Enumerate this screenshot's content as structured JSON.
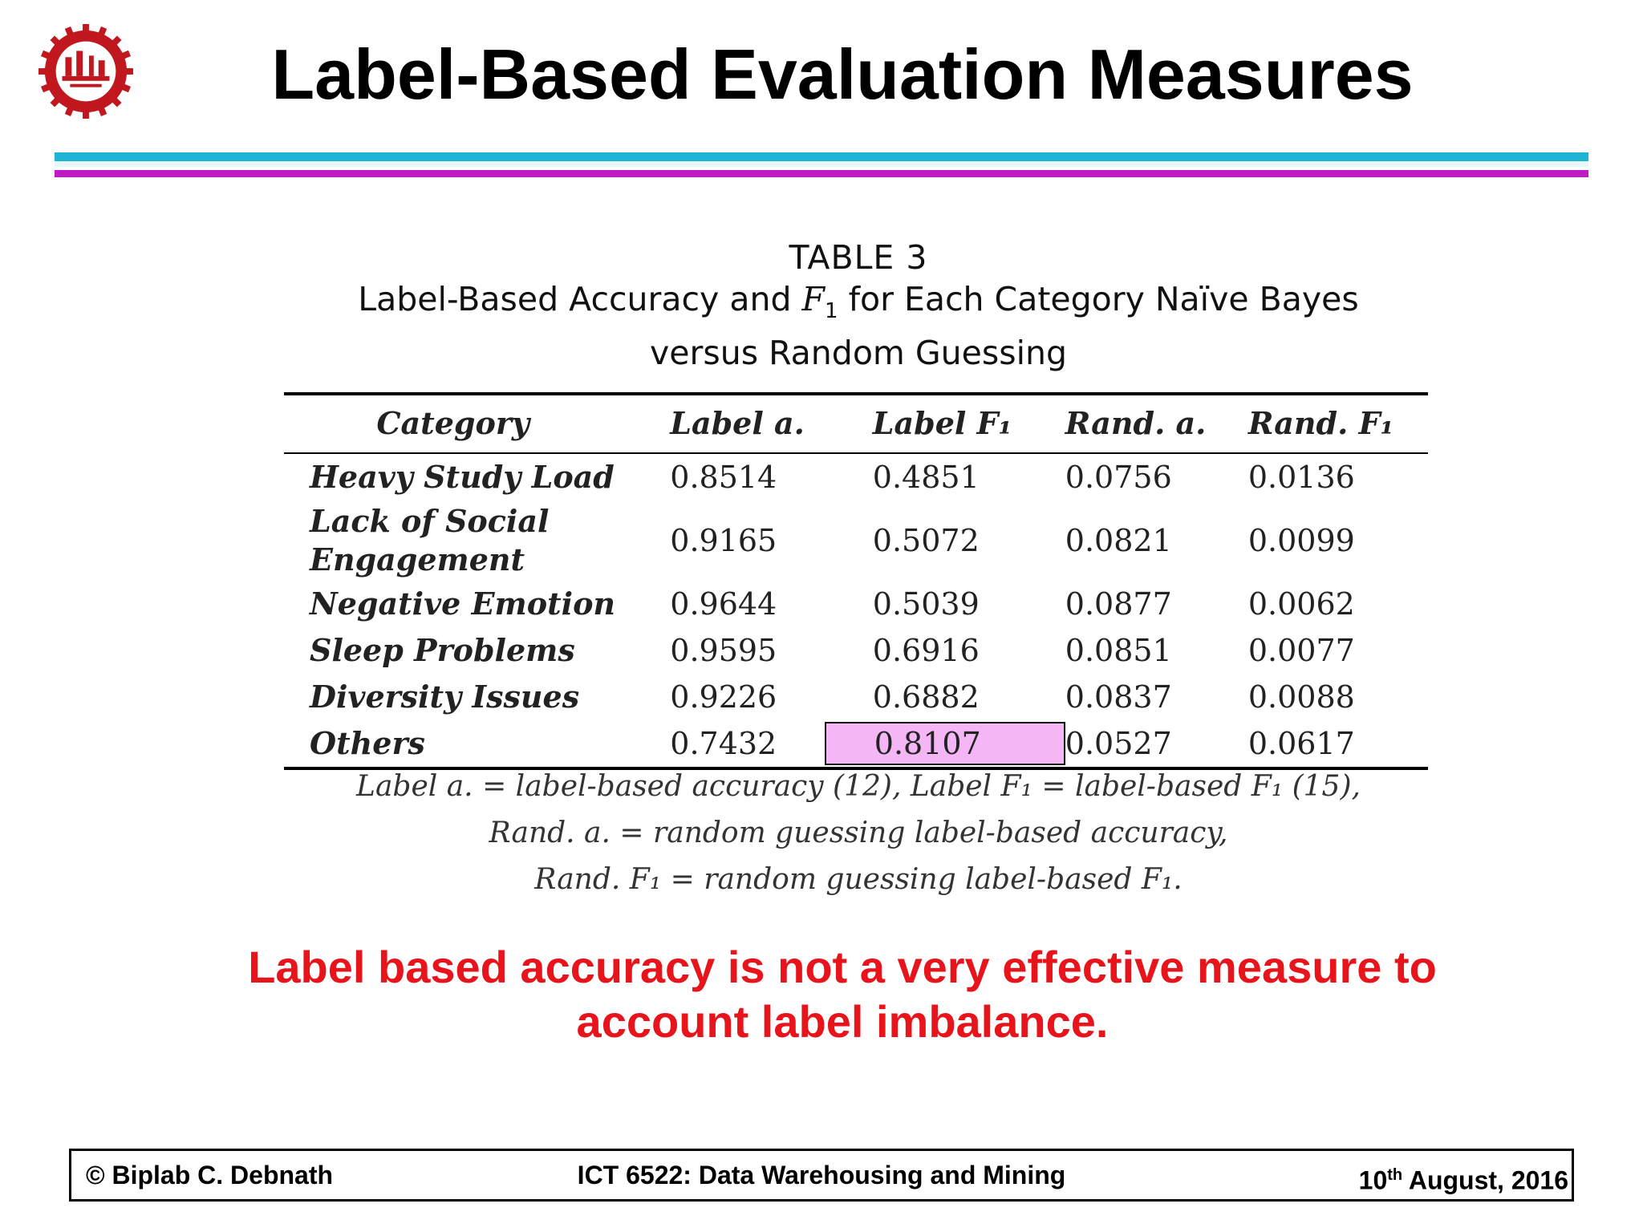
{
  "header": {
    "title": "Label-Based Evaluation Measures"
  },
  "logo": {
    "icon": "university-seal-icon",
    "color": "#c0181e"
  },
  "table": {
    "number": "TABLE 3",
    "caption_before": "Label-Based Accuracy and ",
    "caption_symbol": "F",
    "caption_subscript": "1",
    "caption_after": " for Each Category Naïve Bayes",
    "caption_line2": "versus Random Guessing",
    "columns": [
      "Category",
      "Label a.",
      "Label F₁",
      "Rand. a.",
      "Rand. F₁"
    ],
    "rows": [
      {
        "category": "Heavy Study Load",
        "label_a": "0.8514",
        "label_f1": "0.4851",
        "rand_a": "0.0756",
        "rand_f1": "0.0136"
      },
      {
        "category_line1": "Lack of Social",
        "category_line2": "Engagement",
        "label_a": "0.9165",
        "label_f1": "0.5072",
        "rand_a": "0.0821",
        "rand_f1": "0.0099"
      },
      {
        "category": "Negative Emotion",
        "label_a": "0.9644",
        "label_f1": "0.5039",
        "rand_a": "0.0877",
        "rand_f1": "0.0062"
      },
      {
        "category": "Sleep Problems",
        "label_a": "0.9595",
        "label_f1": "0.6916",
        "rand_a": "0.0851",
        "rand_f1": "0.0077"
      },
      {
        "category": "Diversity Issues",
        "label_a": "0.9226",
        "label_f1": "0.6882",
        "rand_a": "0.0837",
        "rand_f1": "0.0088"
      },
      {
        "category": "Others",
        "label_a": "0.7432",
        "label_f1": "0.8107",
        "rand_a": "0.0527",
        "rand_f1": "0.0617"
      }
    ],
    "highlight_color": "#f4b6f4",
    "footnotes": [
      "Label a. = label-based accuracy (12), Label F₁ = label-based F₁ (15),",
      "Rand. a. = random guessing label-based accuracy,",
      "Rand. F₁ = random guessing label-based F₁."
    ]
  },
  "takeaway": {
    "line1": "Label based accuracy is not a very effective measure to",
    "line2": "account label imbalance.",
    "color": "#e8141c"
  },
  "footer": {
    "left": "© Biplab C. Debnath",
    "center": "ICT 6522: Data Warehousing and Mining",
    "date_day": "10",
    "date_suffix": "th",
    "date_rest": " August, 2016"
  },
  "colors": {
    "rule_cyan": "#1fb4d6",
    "rule_magenta": "#c219c7"
  }
}
